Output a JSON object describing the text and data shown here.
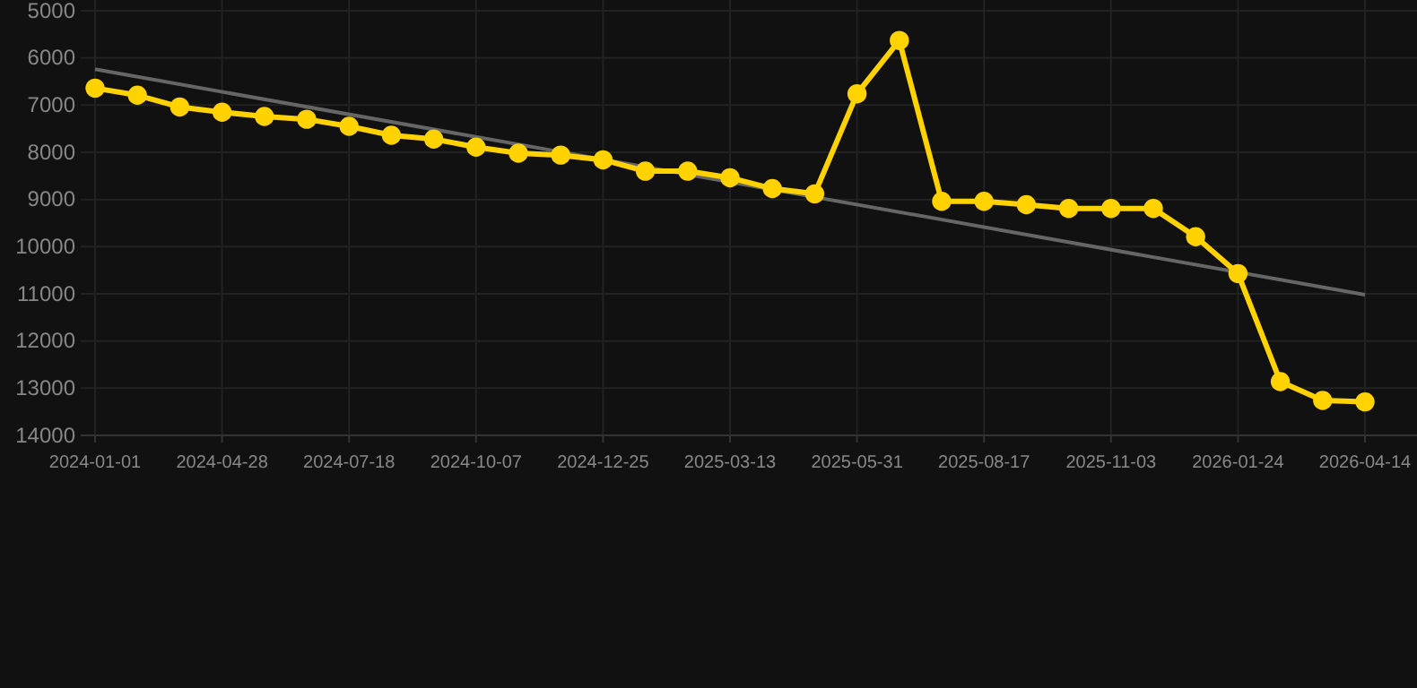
{
  "chart_data": {
    "type": "line",
    "categories": [
      "2024-01-01",
      null,
      null,
      "2024-04-28",
      null,
      null,
      "2024-07-18",
      null,
      null,
      "2024-10-07",
      null,
      null,
      "2024-12-25",
      null,
      null,
      "2025-03-13",
      null,
      null,
      "2025-05-31",
      null,
      null,
      "2025-08-17",
      null,
      null,
      "2025-11-03",
      null,
      null,
      "2026-01-24",
      null,
      null,
      "2026-04-14"
    ],
    "series": [
      {
        "color": "#ffd200",
        "marker": "circle",
        "values": [
          6640,
          6790,
          7040,
          7150,
          7240,
          7300,
          7450,
          7640,
          7720,
          7890,
          8020,
          8060,
          8160,
          8400,
          8400,
          8540,
          8770,
          8880,
          6760,
          5630,
          9040,
          9040,
          9110,
          9190,
          9190,
          9190,
          9790,
          10570,
          12860,
          13260,
          13290
        ]
      },
      {
        "color": "#666666",
        "marker": "none",
        "values": [
          6240,
          null,
          null,
          null,
          null,
          null,
          null,
          null,
          null,
          null,
          null,
          null,
          null,
          null,
          null,
          null,
          null,
          null,
          null,
          null,
          null,
          null,
          null,
          null,
          null,
          null,
          null,
          null,
          null,
          null,
          11020
        ]
      }
    ],
    "ylim": [
      14000,
      5000
    ],
    "yticks": [
      5000,
      6000,
      7000,
      8000,
      9000,
      10000,
      11000,
      12000,
      13000,
      14000
    ],
    "grid": true
  }
}
